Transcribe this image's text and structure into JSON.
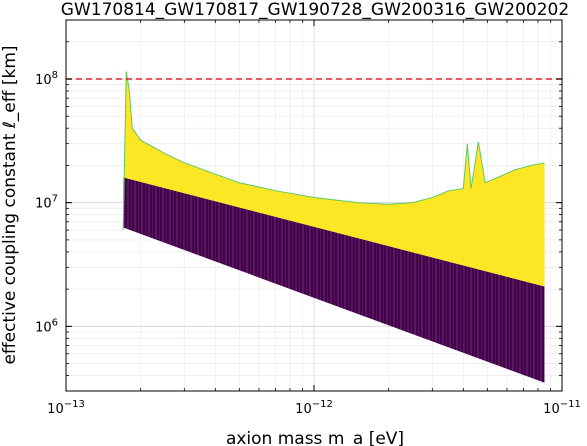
{
  "chart_data": {
    "type": "heatmap",
    "title": "GW170814_GW170817_GW190728_GW200316_GW200202",
    "xlabel": "axion mass m_a [eV]",
    "ylabel": "effective coupling constant ℓ_eff [km]",
    "xscale": "log",
    "yscale": "log",
    "xlim": [
      1e-13,
      1e-11
    ],
    "ylim": [
      300000,
      300000000
    ],
    "x_ticks": [
      {
        "value": 1e-13,
        "base": "10",
        "exp": "−13"
      },
      {
        "value": 1e-12,
        "base": "10",
        "exp": "−12"
      },
      {
        "value": 1e-11,
        "base": "10",
        "exp": "−11"
      }
    ],
    "y_ticks": [
      {
        "value": 1000000,
        "base": "10",
        "exp": "6"
      },
      {
        "value": 10000000,
        "base": "10",
        "exp": "7"
      },
      {
        "value": 100000000,
        "base": "10",
        "exp": "8"
      }
    ],
    "grid": true,
    "colors": {
      "excluded": "#fde725",
      "allowed": "#440154",
      "boundary": "#5ec962",
      "threshold_line": "#d62728",
      "stripe": "#e8c84a"
    },
    "reference_line": {
      "y": 100000000,
      "style": "dashed"
    },
    "region": {
      "x_range": [
        1.7e-13,
        8.5e-12
      ],
      "upper_edge": [
        [
          1.7e-13,
          16000000
        ],
        [
          8.5e-12,
          2100000
        ]
      ],
      "lower_edge": [
        [
          1.7e-13,
          6300000
        ],
        [
          8.5e-12,
          350000
        ]
      ],
      "boundary_curve": [
        [
          1.7e-13,
          6000000
        ],
        [
          1.75e-13,
          115000000
        ],
        [
          1.8e-13,
          80000000
        ],
        [
          1.85e-13,
          40000000
        ],
        [
          2e-13,
          32000000
        ],
        [
          2.5e-13,
          25000000
        ],
        [
          3e-13,
          21000000
        ],
        [
          4e-13,
          17000000
        ],
        [
          5e-13,
          14500000
        ],
        [
          7e-13,
          12500000
        ],
        [
          1e-12,
          11000000
        ],
        [
          1.5e-12,
          10000000
        ],
        [
          2e-12,
          9700000
        ],
        [
          2.5e-12,
          10000000
        ],
        [
          3e-12,
          11000000
        ],
        [
          3.5e-12,
          12500000
        ],
        [
          4e-12,
          13000000
        ],
        [
          4.15e-12,
          30000000
        ],
        [
          4.3e-12,
          13000000
        ],
        [
          4.6e-12,
          31000000
        ],
        [
          4.9e-12,
          14500000
        ],
        [
          5.5e-12,
          16000000
        ],
        [
          6.5e-12,
          18500000
        ],
        [
          7.5e-12,
          20000000
        ],
        [
          8.5e-12,
          21000000
        ]
      ]
    }
  }
}
